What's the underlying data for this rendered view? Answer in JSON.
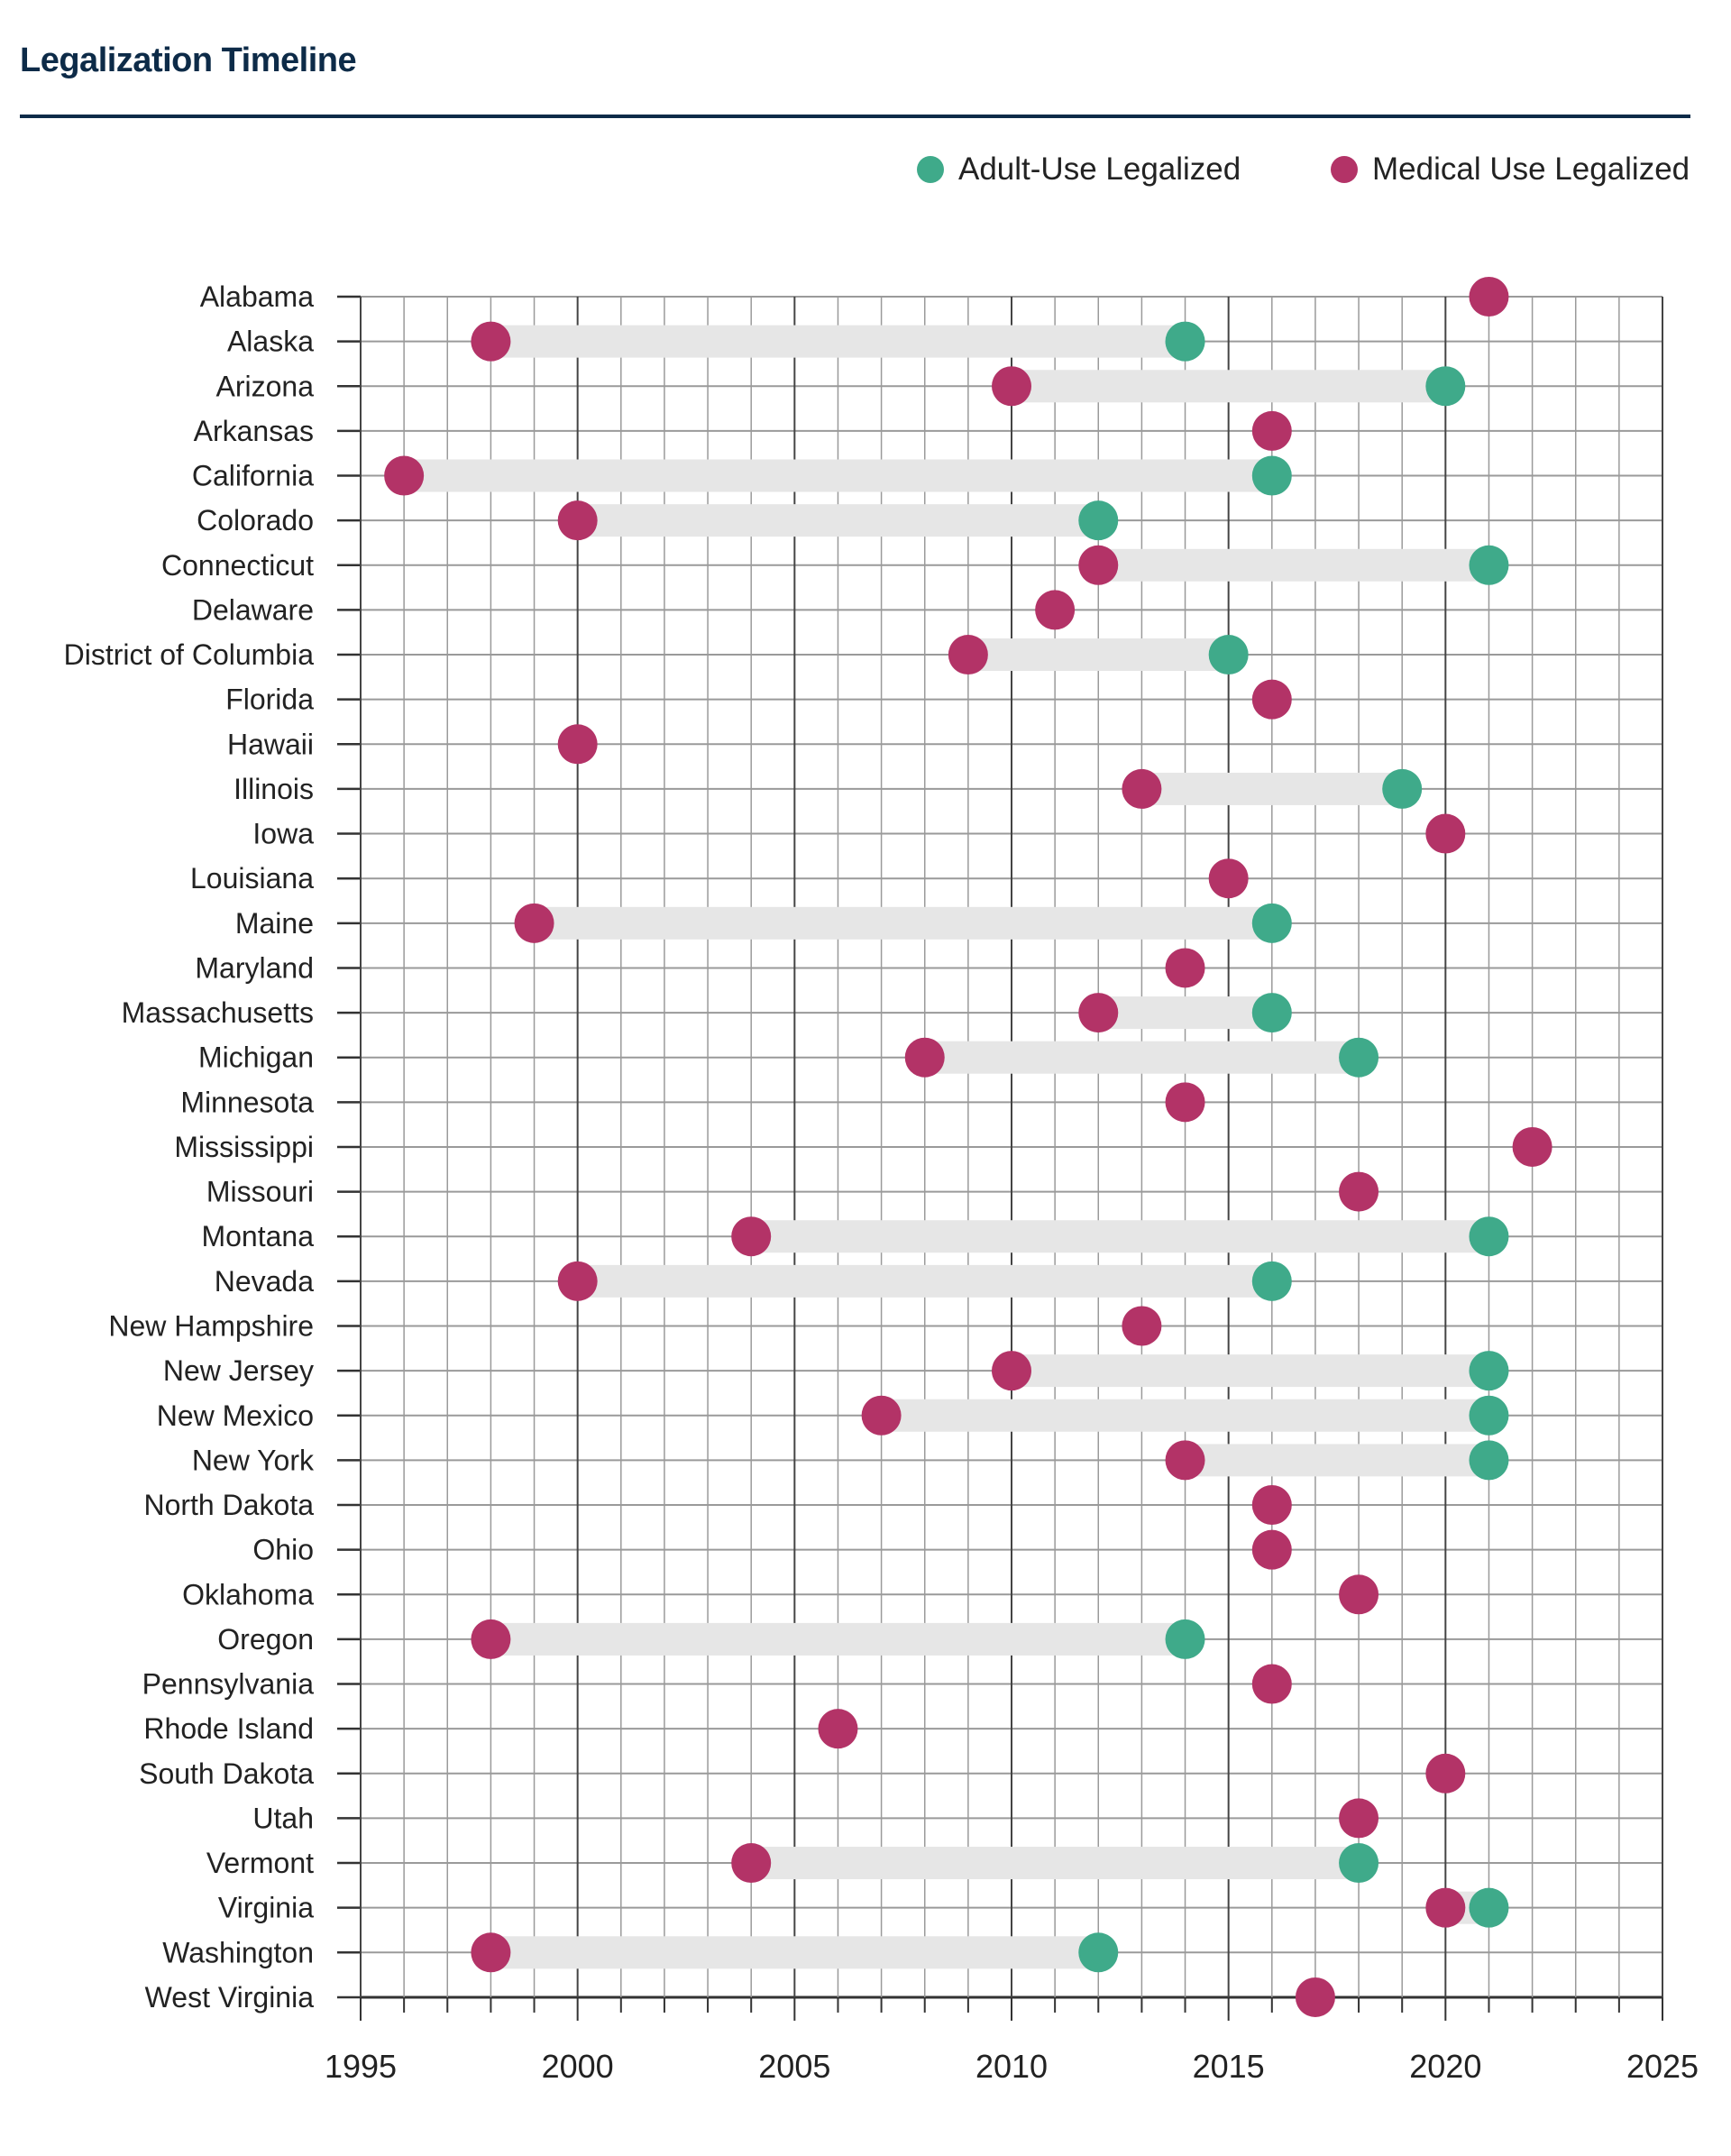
{
  "title": "Legalization Timeline",
  "colors": {
    "adult": "#3faa8a",
    "medical": "#b33367",
    "band": "#e6e6e6",
    "title": "#0d2b48",
    "grid_minor": "#9a9a9a",
    "grid_major": "#444444"
  },
  "legend": [
    {
      "key": "adult",
      "label": "Adult-Use Legalized"
    },
    {
      "key": "medical",
      "label": "Medical Use Legalized"
    }
  ],
  "chart_data": {
    "type": "dumbbell",
    "title": "Legalization Timeline",
    "xlabel": "",
    "ylabel": "",
    "xlim": [
      1995,
      2025
    ],
    "x_ticks": [
      1995,
      2000,
      2005,
      2010,
      2015,
      2020,
      2025
    ],
    "grid": true,
    "legend_position": "top-right",
    "series": [
      {
        "name": "Medical Use Legalized",
        "key": "medical"
      },
      {
        "name": "Adult-Use Legalized",
        "key": "adult"
      }
    ],
    "rows": [
      {
        "state": "Alabama",
        "medical": 2021,
        "adult": null
      },
      {
        "state": "Alaska",
        "medical": 1998,
        "adult": 2014
      },
      {
        "state": "Arizona",
        "medical": 2010,
        "adult": 2020
      },
      {
        "state": "Arkansas",
        "medical": 2016,
        "adult": null
      },
      {
        "state": "California",
        "medical": 1996,
        "adult": 2016
      },
      {
        "state": "Colorado",
        "medical": 2000,
        "adult": 2012
      },
      {
        "state": "Connecticut",
        "medical": 2012,
        "adult": 2021
      },
      {
        "state": "Delaware",
        "medical": 2011,
        "adult": null
      },
      {
        "state": "District of Columbia",
        "medical": 2009,
        "adult": 2015
      },
      {
        "state": "Florida",
        "medical": 2016,
        "adult": null
      },
      {
        "state": "Hawaii",
        "medical": 2000,
        "adult": null
      },
      {
        "state": "Illinois",
        "medical": 2013,
        "adult": 2019
      },
      {
        "state": "Iowa",
        "medical": 2020,
        "adult": null
      },
      {
        "state": "Louisiana",
        "medical": 2015,
        "adult": null
      },
      {
        "state": "Maine",
        "medical": 1999,
        "adult": 2016
      },
      {
        "state": "Maryland",
        "medical": 2014,
        "adult": null
      },
      {
        "state": "Massachusetts",
        "medical": 2012,
        "adult": 2016
      },
      {
        "state": "Michigan",
        "medical": 2008,
        "adult": 2018
      },
      {
        "state": "Minnesota",
        "medical": 2014,
        "adult": null
      },
      {
        "state": "Mississippi",
        "medical": 2022,
        "adult": null
      },
      {
        "state": "Missouri",
        "medical": 2018,
        "adult": null
      },
      {
        "state": "Montana",
        "medical": 2004,
        "adult": 2021
      },
      {
        "state": "Nevada",
        "medical": 2000,
        "adult": 2016
      },
      {
        "state": "New Hampshire",
        "medical": 2013,
        "adult": null
      },
      {
        "state": "New Jersey",
        "medical": 2010,
        "adult": 2021
      },
      {
        "state": "New Mexico",
        "medical": 2007,
        "adult": 2021
      },
      {
        "state": "New York",
        "medical": 2014,
        "adult": 2021
      },
      {
        "state": "North Dakota",
        "medical": 2016,
        "adult": null
      },
      {
        "state": "Ohio",
        "medical": 2016,
        "adult": null
      },
      {
        "state": "Oklahoma",
        "medical": 2018,
        "adult": null
      },
      {
        "state": "Oregon",
        "medical": 1998,
        "adult": 2014
      },
      {
        "state": "Pennsylvania",
        "medical": 2016,
        "adult": null
      },
      {
        "state": "Rhode Island",
        "medical": 2006,
        "adult": null
      },
      {
        "state": "South Dakota",
        "medical": 2020,
        "adult": null
      },
      {
        "state": "Utah",
        "medical": 2018,
        "adult": null
      },
      {
        "state": "Vermont",
        "medical": 2004,
        "adult": 2018
      },
      {
        "state": "Virginia",
        "medical": 2020,
        "adult": 2021
      },
      {
        "state": "Washington",
        "medical": 1998,
        "adult": 2012
      },
      {
        "state": "West Virginia",
        "medical": 2017,
        "adult": null
      }
    ]
  }
}
